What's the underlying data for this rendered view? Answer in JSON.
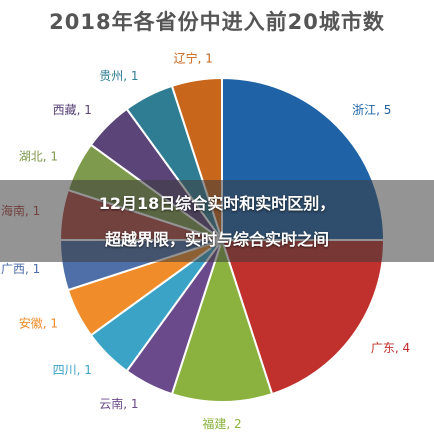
{
  "chart_data": {
    "type": "pie",
    "title": "2018年各省份中进入前20城市数",
    "separator": ", ",
    "slices": [
      {
        "label": "浙江",
        "value": 5,
        "color": "#1f63a6"
      },
      {
        "label": "广东",
        "value": 4,
        "color": "#c0312e"
      },
      {
        "label": "福建",
        "value": 2,
        "color": "#8bb23e"
      },
      {
        "label": "云南",
        "value": 1,
        "color": "#6a4a8a"
      },
      {
        "label": "四川",
        "value": 1,
        "color": "#3aa3c6"
      },
      {
        "label": "安徽",
        "value": 1,
        "color": "#f08c2a"
      },
      {
        "label": "广西",
        "value": 1,
        "color": "#4f6fa8"
      },
      {
        "label": "海南",
        "value": 1,
        "color": "#b34a44"
      },
      {
        "label": "湖北",
        "value": 1,
        "color": "#7e9a4c"
      },
      {
        "label": "西藏",
        "value": 1,
        "color": "#5a4478"
      },
      {
        "label": "贵州",
        "value": 1,
        "color": "#2f7d93"
      },
      {
        "label": "辽宁",
        "value": 1,
        "color": "#c8661c"
      }
    ]
  },
  "overlay": {
    "line1": "12月18日综合实时和实时区别，",
    "line2": "超越界限，实时与综合实时之间"
  }
}
